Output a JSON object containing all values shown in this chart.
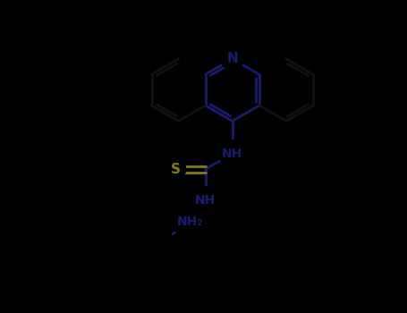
{
  "background_color": "#000000",
  "bond_color": "#1a1a6e",
  "outer_bond_color": "#111111",
  "S_color": "#808000",
  "N_color": "#1a1a6e",
  "line_width": 2.0,
  "figsize": [
    4.55,
    3.5
  ],
  "dpi": 100,
  "xlim": [
    0,
    9.1
  ],
  "ylim": [
    0,
    7.0
  ]
}
